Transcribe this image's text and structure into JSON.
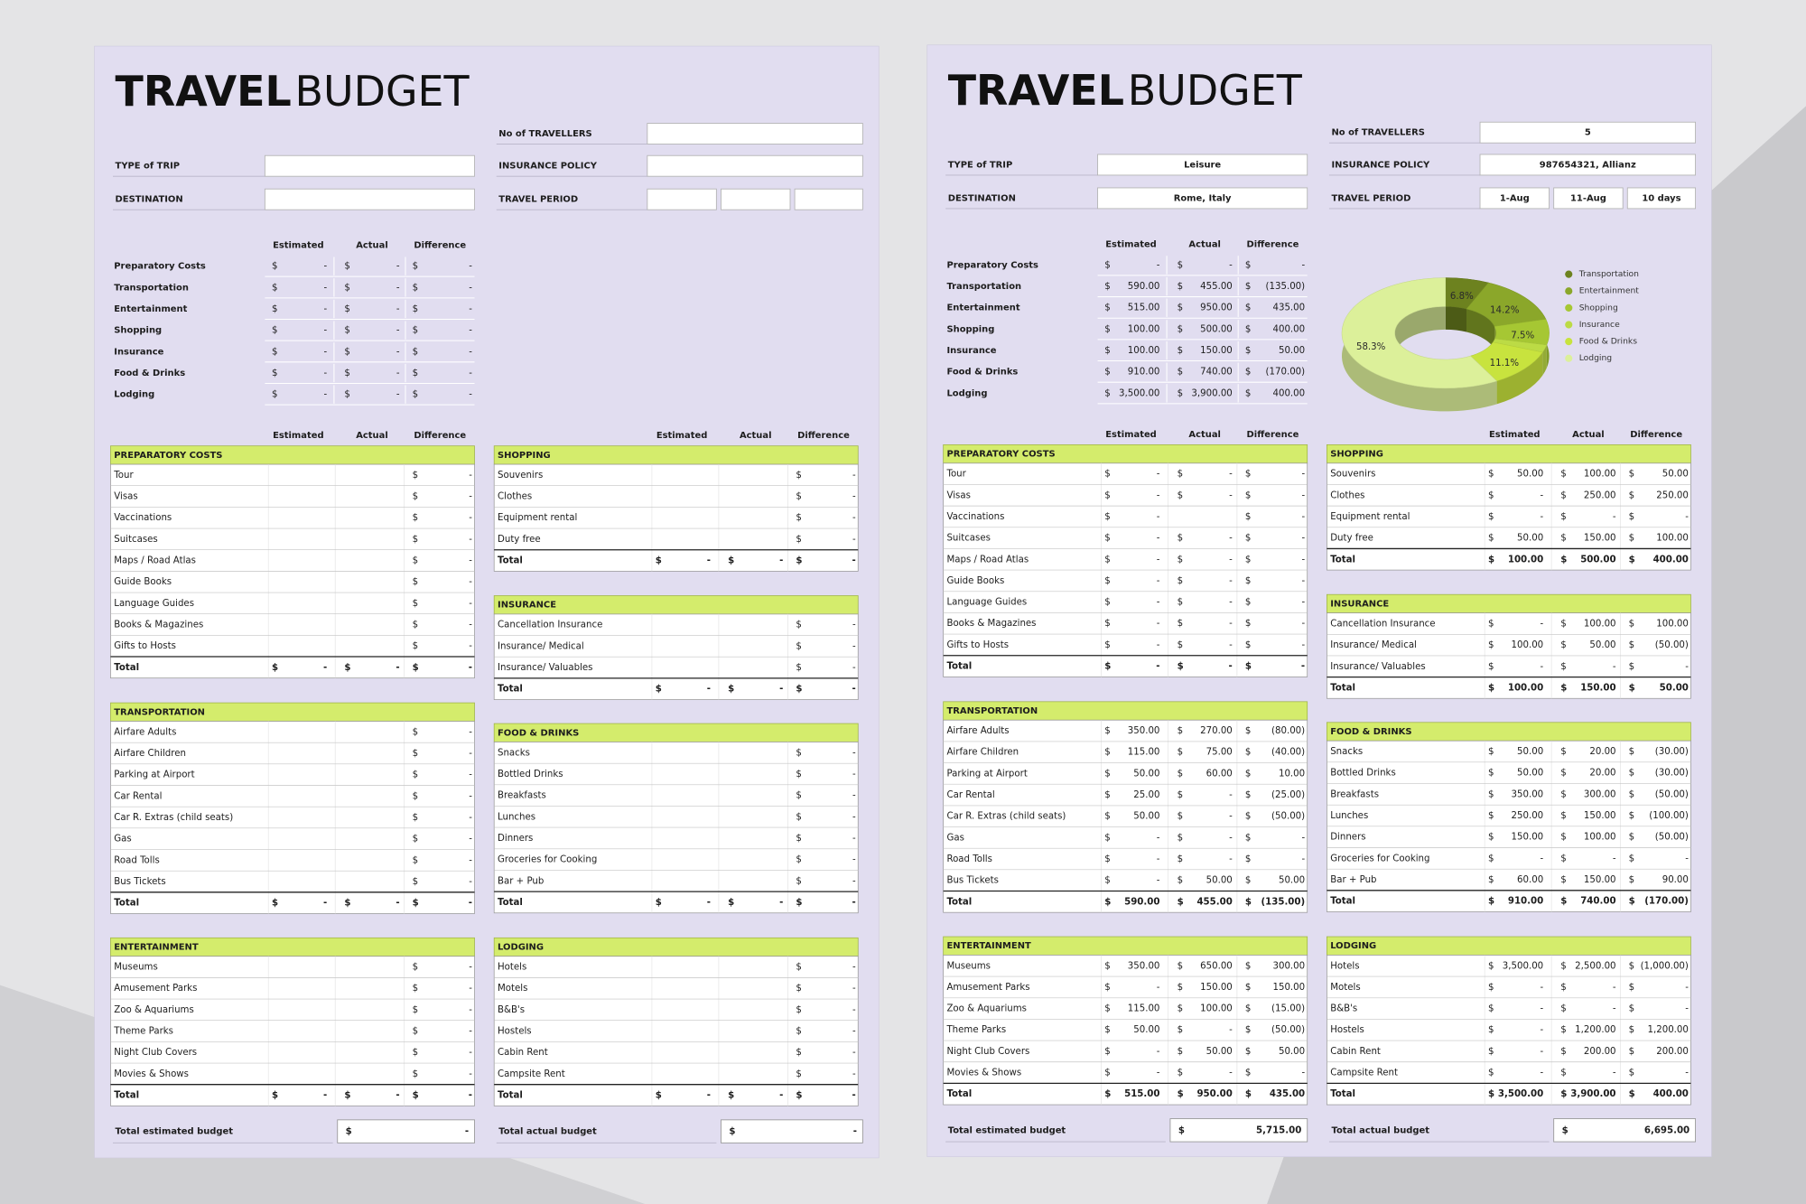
{
  "header": {
    "title_bold": "TRAVEL",
    "title_light": "BUDGET"
  },
  "labels": {
    "no_travellers": "No of TRAVELLERS",
    "type_of_trip": "TYPE of TRIP",
    "insurance_policy": "INSURANCE POLICY",
    "destination": "DESTINATION",
    "travel_period": "TRAVEL PERIOD",
    "estimated": "Estimated",
    "actual": "Actual",
    "difference": "Difference",
    "total": "Total",
    "total_estimated_budget": "Total estimated budget",
    "total_actual_budget": "Total actual budget",
    "currency": "$",
    "blank": "-"
  },
  "summary_categories": [
    "Preparatory Costs",
    "Transportation",
    "Entertainment",
    "Shopping",
    "Insurance",
    "Food & Drinks",
    "Lodging"
  ],
  "sections": [
    {
      "title": "PREPARATORY COSTS",
      "items": [
        "Tour",
        "Visas",
        "Vaccinations",
        "Suitcases",
        "Maps / Road Atlas",
        "Guide Books",
        "Language Guides",
        "Books & Magazines",
        "Gifts to Hosts"
      ]
    },
    {
      "title": "TRANSPORTATION",
      "items": [
        "Airfare Adults",
        "Airfare Children",
        "Parking at Airport",
        "Car Rental",
        "Car R. Extras (child seats)",
        "Gas",
        "Road Tolls",
        "Bus Tickets"
      ]
    },
    {
      "title": "ENTERTAINMENT",
      "items": [
        "Museums",
        "Amusement Parks",
        "Zoo & Aquariums",
        "Theme Parks",
        "Night Club Covers",
        "Movies & Shows"
      ]
    },
    {
      "title": "SHOPPING",
      "items": [
        "Souvenirs",
        "Clothes",
        "Equipment rental",
        "Duty free"
      ]
    },
    {
      "title": "INSURANCE",
      "items": [
        "Cancellation Insurance",
        "Insurance/ Medical",
        "Insurance/ Valuables"
      ]
    },
    {
      "title": "FOOD & DRINKS",
      "items": [
        "Snacks",
        "Bottled Drinks",
        "Breakfasts",
        "Lunches",
        "Dinners",
        "Groceries for Cooking",
        "Bar + Pub"
      ]
    },
    {
      "title": "LODGING",
      "items": [
        "Hotels",
        "Motels",
        "B&B's",
        "Hostels",
        "Cabin Rent",
        "Campsite Rent"
      ]
    }
  ],
  "filled": {
    "travellers": "5",
    "type_of_trip": "Leisure",
    "insurance_policy": "987654321, Allianz",
    "destination": "Rome, Italy",
    "travel_period": [
      "1-Aug",
      "11-Aug",
      "10 days"
    ],
    "summary": [
      [
        "-",
        "-",
        "-"
      ],
      [
        "590.00",
        "455.00",
        "(135.00)"
      ],
      [
        "515.00",
        "950.00",
        "435.00"
      ],
      [
        "100.00",
        "500.00",
        "400.00"
      ],
      [
        "100.00",
        "150.00",
        "50.00"
      ],
      [
        "910.00",
        "740.00",
        "(170.00)"
      ],
      [
        "3,500.00",
        "3,900.00",
        "400.00"
      ]
    ],
    "sections": [
      {
        "rows": [
          [
            "-",
            "-",
            "-"
          ],
          [
            "-",
            "-",
            "-"
          ],
          [
            "-",
            null,
            "-"
          ],
          [
            "-",
            "-",
            "-"
          ],
          [
            "-",
            "-",
            "-"
          ],
          [
            "-",
            "-",
            "-"
          ],
          [
            "-",
            "-",
            "-"
          ],
          [
            "-",
            "-",
            "-"
          ],
          [
            "-",
            "-",
            "-"
          ]
        ],
        "total": [
          "-",
          "-",
          "-"
        ]
      },
      {
        "rows": [
          [
            "350.00",
            "270.00",
            "(80.00)"
          ],
          [
            "115.00",
            "75.00",
            "(40.00)"
          ],
          [
            "50.00",
            "60.00",
            "10.00"
          ],
          [
            "25.00",
            "-",
            "(25.00)"
          ],
          [
            "50.00",
            "-",
            "(50.00)"
          ],
          [
            "-",
            "-",
            "-"
          ],
          [
            "-",
            "-",
            "-"
          ],
          [
            "-",
            "50.00",
            "50.00"
          ]
        ],
        "total": [
          "590.00",
          "455.00",
          "(135.00)"
        ]
      },
      {
        "rows": [
          [
            "350.00",
            "650.00",
            "300.00"
          ],
          [
            "-",
            "150.00",
            "150.00"
          ],
          [
            "115.00",
            "100.00",
            "(15.00)"
          ],
          [
            "50.00",
            "-",
            "(50.00)"
          ],
          [
            "-",
            "50.00",
            "50.00"
          ],
          [
            "-",
            "-",
            "-"
          ]
        ],
        "total": [
          "515.00",
          "950.00",
          "435.00"
        ]
      },
      {
        "rows": [
          [
            "50.00",
            "100.00",
            "50.00"
          ],
          [
            "-",
            "250.00",
            "250.00"
          ],
          [
            "-",
            "-",
            "-"
          ],
          [
            "50.00",
            "150.00",
            "100.00"
          ]
        ],
        "total": [
          "100.00",
          "500.00",
          "400.00"
        ]
      },
      {
        "rows": [
          [
            "-",
            "100.00",
            "100.00"
          ],
          [
            "100.00",
            "50.00",
            "(50.00)"
          ],
          [
            "-",
            "-",
            "-"
          ]
        ],
        "total": [
          "100.00",
          "150.00",
          "50.00"
        ]
      },
      {
        "rows": [
          [
            "50.00",
            "20.00",
            "(30.00)"
          ],
          [
            "50.00",
            "20.00",
            "(30.00)"
          ],
          [
            "350.00",
            "300.00",
            "(50.00)"
          ],
          [
            "250.00",
            "150.00",
            "(100.00)"
          ],
          [
            "150.00",
            "100.00",
            "(50.00)"
          ],
          [
            "-",
            "-",
            "-"
          ],
          [
            "60.00",
            "150.00",
            "90.00"
          ]
        ],
        "total": [
          "910.00",
          "740.00",
          "(170.00)"
        ]
      },
      {
        "rows": [
          [
            "3,500.00",
            "2,500.00",
            "(1,000.00)"
          ],
          [
            "-",
            "-",
            "-"
          ],
          [
            "-",
            "-",
            "-"
          ],
          [
            "-",
            "1,200.00",
            "1,200.00"
          ],
          [
            "-",
            "200.00",
            "200.00"
          ],
          [
            "-",
            "-",
            "-"
          ]
        ],
        "total": [
          "3,500.00",
          "3,900.00",
          "400.00"
        ]
      }
    ],
    "total_estimated_budget": "5,715.00",
    "total_actual_budget": "6,695.00"
  },
  "chart_data": {
    "type": "pie",
    "categories": [
      "Transportation",
      "Entertainment",
      "Shopping",
      "Insurance",
      "Food & Drinks",
      "Lodging"
    ],
    "values": [
      6.8,
      14.2,
      7.5,
      2.2,
      11.1,
      58.3
    ],
    "value_labels": [
      "6.8%",
      "14.2%",
      "7.5%",
      null,
      "11.1%",
      "58.3%"
    ],
    "colors": [
      "#6d821f",
      "#8ba72a",
      "#a6c733",
      "#bcdb45",
      "#c8e33e",
      "#dcf09a"
    ]
  }
}
